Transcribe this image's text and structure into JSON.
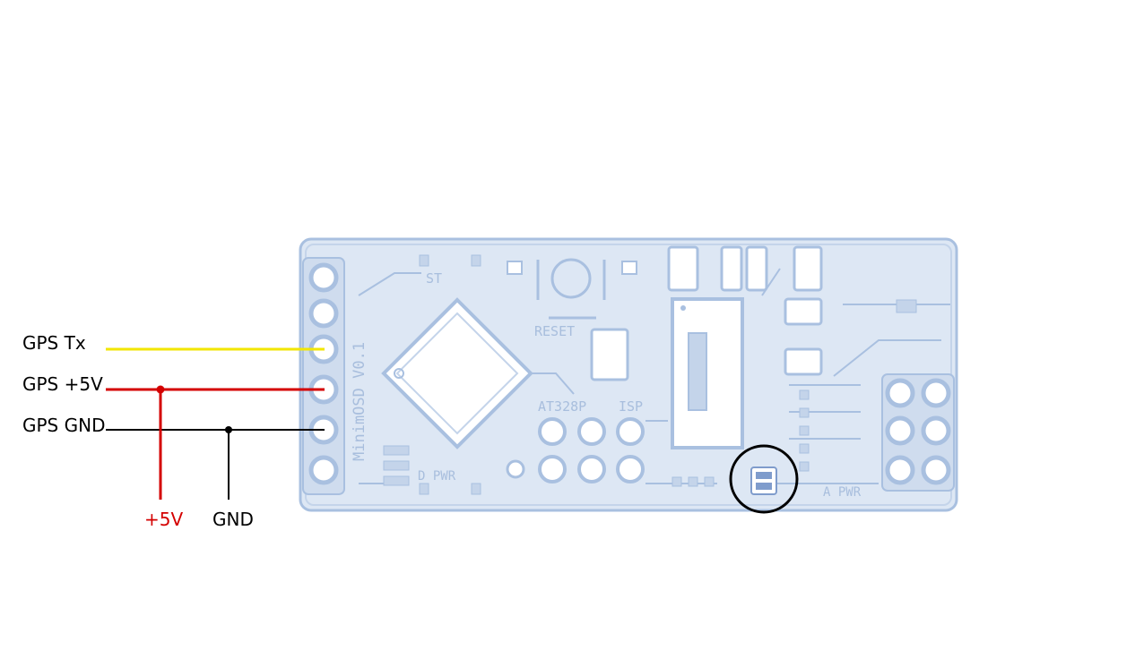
{
  "labels": {
    "gps_tx": "GPS Tx",
    "gps_5v": "GPS +5V",
    "gps_gnd": "GPS GND",
    "plus_5v": "+5V",
    "gnd": "GND"
  },
  "board": {
    "st": "ST",
    "reset": "RESET",
    "title": "MinimOSD V0.1",
    "chip": "AT328P",
    "isp": "ISP",
    "d_pwr": "D PWR",
    "a_pwr": "A PWR"
  },
  "colors": {
    "tx_wire": "#f2e600",
    "power_wire": "#d40000",
    "gnd_wire": "#000000",
    "board_fill": "#dde7f4",
    "board_line": "#a9c0e0",
    "highlight_circle": "#000000"
  }
}
